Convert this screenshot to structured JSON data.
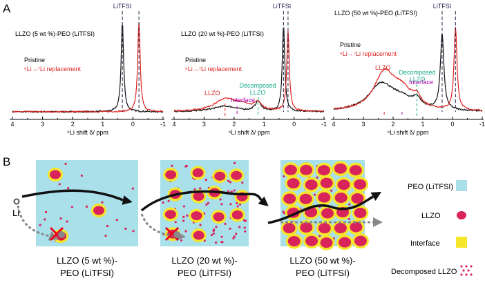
{
  "panel_a": {
    "label": "A",
    "spectra": [
      {
        "title": "LLZO (5 wt %)-PEO (LiTFSI)",
        "legend": [
          "Pristine",
          "⁶Li→⁷Li replacement"
        ],
        "peak_label": "LiTFSI",
        "xticks": [
          4,
          3,
          2,
          1,
          0,
          -1
        ],
        "xlabel": "⁶Li shift δ/ ppm"
      },
      {
        "title": "LLZO (20 wt %)-PEO (LiTFSI)",
        "legend": [
          "Pristine",
          "⁶Li→⁷Li replacement"
        ],
        "peak_label": "LiTFSI",
        "annotations": [
          "LLZO",
          "Interface"
        ],
        "decomposed": [
          "Decomposed",
          "LLZO"
        ],
        "xticks": [
          4,
          3,
          2,
          1,
          0,
          -1
        ],
        "xlabel": "⁶Li shift δ/ ppm"
      },
      {
        "title": "LLZO (50 wt %)-PEO (LiTFSI)",
        "legend": [
          "Pristine",
          "⁶Li→⁷Li replacement"
        ],
        "peak_label": "LiTFSI",
        "annotations": [
          "LLZO",
          "Interface"
        ],
        "decomposed": [
          "Decomposed",
          "LLZO"
        ],
        "xticks": [
          4,
          3,
          2,
          1,
          0,
          -1
        ],
        "xlabel": "⁶Li shift δ/ ppm"
      }
    ]
  },
  "panel_b": {
    "label": "B",
    "li": "Li",
    "captions": [
      [
        "LLZO (5 wt %)-",
        "PEO (LiTFSI)"
      ],
      [
        "LLZO (20 wt %)-",
        "PEO (LiTFSI)"
      ],
      [
        "LLZO (50 wt %)-",
        "PEO (LiTFSI)"
      ]
    ],
    "legend": [
      "PEO (LiTFSI)",
      "LLZO",
      "Interface",
      "Decomposed LLZO"
    ]
  }
}
